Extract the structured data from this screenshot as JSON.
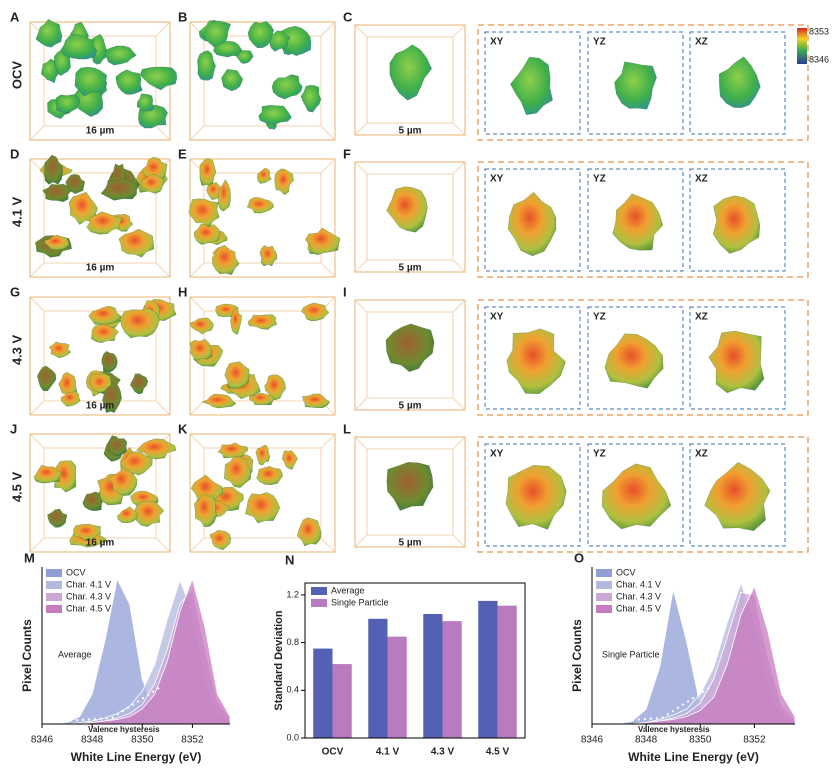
{
  "figure": {
    "rows": [
      {
        "label": "OCV",
        "panels": [
          "A",
          "B",
          "C"
        ],
        "scale_ab": "16 µm",
        "scale_c": "5 µm",
        "slices": [
          "XY",
          "YZ",
          "XZ"
        ]
      },
      {
        "label": "4.1 V",
        "panels": [
          "D",
          "E",
          "F"
        ],
        "scale_ab": "16 µm",
        "scale_c": "5 µm",
        "slices": [
          "XY",
          "YZ",
          "XZ"
        ]
      },
      {
        "label": "4.3 V",
        "panels": [
          "G",
          "H",
          "I"
        ],
        "scale_ab": "16 µm",
        "scale_c": "5 µm",
        "slices": [
          "XY",
          "YZ",
          "XZ"
        ]
      },
      {
        "label": "4.5 V",
        "panels": [
          "J",
          "K",
          "L"
        ],
        "scale_ab": "16 µm",
        "scale_c": "5 µm",
        "slices": [
          "XY",
          "YZ",
          "XZ"
        ]
      }
    ],
    "colorbar": {
      "max": 8353,
      "min": 8346
    }
  },
  "chart_data": [
    {
      "type": "area",
      "panel": "M",
      "xlabel": "White Line Energy (eV)",
      "ylabel": "Pixel Counts",
      "annotations": [
        "Average",
        "Valence hysteresis"
      ],
      "legend": "upper left",
      "x": [
        8346,
        8346.5,
        8347,
        8347.5,
        8348,
        8348.5,
        8349,
        8349.5,
        8350,
        8350.5,
        8351,
        8351.5,
        8352,
        8352.5,
        8353,
        8353.5
      ],
      "xlim": [
        8346,
        8353.5
      ],
      "xticks": [
        8346,
        8348,
        8350,
        8352
      ],
      "ylim": [
        0,
        1.05
      ],
      "series": [
        {
          "name": "OCV",
          "color": "#8f9fd6",
          "values": [
            0,
            0,
            0.01,
            0.05,
            0.2,
            0.55,
            0.97,
            0.8,
            0.3,
            0.08,
            0.02,
            0.01,
            0,
            0,
            0,
            0
          ]
        },
        {
          "name": "Char. 4.1 V",
          "color": "#b3b8df",
          "values": [
            0,
            0,
            0,
            0.01,
            0.02,
            0.04,
            0.07,
            0.12,
            0.22,
            0.4,
            0.7,
            0.96,
            0.75,
            0.3,
            0.08,
            0.02
          ]
        },
        {
          "name": "Char. 4.3 V",
          "color": "#c9a6d6",
          "values": [
            0,
            0,
            0,
            0,
            0.01,
            0.02,
            0.04,
            0.07,
            0.13,
            0.27,
            0.5,
            0.8,
            0.9,
            0.5,
            0.15,
            0.04
          ]
        },
        {
          "name": "Char. 4.5 V",
          "color": "#c77bbf",
          "values": [
            0,
            0,
            0,
            0,
            0.01,
            0.02,
            0.03,
            0.05,
            0.1,
            0.2,
            0.42,
            0.75,
            0.97,
            0.65,
            0.2,
            0.05
          ]
        }
      ]
    },
    {
      "type": "bar",
      "panel": "N",
      "ylabel": "Standard Deviation",
      "legend": "upper left",
      "categories": [
        "OCV",
        "4.1 V",
        "4.3 V",
        "4.5 V"
      ],
      "ylim": [
        0,
        1.3
      ],
      "yticks": [
        {
          "value": 0,
          "label": "0.0"
        },
        0.4,
        0.8,
        1.2
      ],
      "series": [
        {
          "name": "Average",
          "color": "#5460b3",
          "values": [
            0.75,
            1.0,
            1.04,
            1.15
          ]
        },
        {
          "name": "Single Particle",
          "color": "#b97bbf",
          "values": [
            0.62,
            0.85,
            0.98,
            1.11
          ]
        }
      ]
    },
    {
      "type": "area",
      "panel": "O",
      "xlabel": "White Line Energy (eV)",
      "ylabel": "Pixel Counts",
      "annotations": [
        "Single Particle",
        "Valence hysteresis"
      ],
      "legend": "upper left",
      "x": [
        8346,
        8346.5,
        8347,
        8347.5,
        8348,
        8348.5,
        8349,
        8349.5,
        8350,
        8350.5,
        8351,
        8351.5,
        8352,
        8352.5,
        8353,
        8353.5
      ],
      "xlim": [
        8346,
        8353.5
      ],
      "xticks": [
        8346,
        8348,
        8350,
        8352
      ],
      "ylim": [
        0,
        1.05
      ],
      "series": [
        {
          "name": "OCV",
          "color": "#8f9fd6",
          "values": [
            0,
            0,
            0,
            0.02,
            0.1,
            0.38,
            0.9,
            0.55,
            0.12,
            0.03,
            0.01,
            0,
            0,
            0,
            0,
            0
          ]
        },
        {
          "name": "Char. 4.1 V",
          "color": "#b3b8df",
          "values": [
            0,
            0,
            0,
            0,
            0.01,
            0.03,
            0.06,
            0.1,
            0.2,
            0.38,
            0.68,
            0.94,
            0.7,
            0.25,
            0.06,
            0.01
          ]
        },
        {
          "name": "Char. 4.3 V",
          "color": "#c9a6d6",
          "values": [
            0,
            0,
            0,
            0,
            0.01,
            0.02,
            0.04,
            0.07,
            0.14,
            0.3,
            0.58,
            0.88,
            0.86,
            0.45,
            0.12,
            0.03
          ]
        },
        {
          "name": "Char. 4.5 V",
          "color": "#c77bbf",
          "values": [
            0,
            0,
            0,
            0,
            0.01,
            0.02,
            0.03,
            0.05,
            0.09,
            0.18,
            0.4,
            0.73,
            0.92,
            0.62,
            0.2,
            0.05
          ]
        }
      ]
    }
  ]
}
